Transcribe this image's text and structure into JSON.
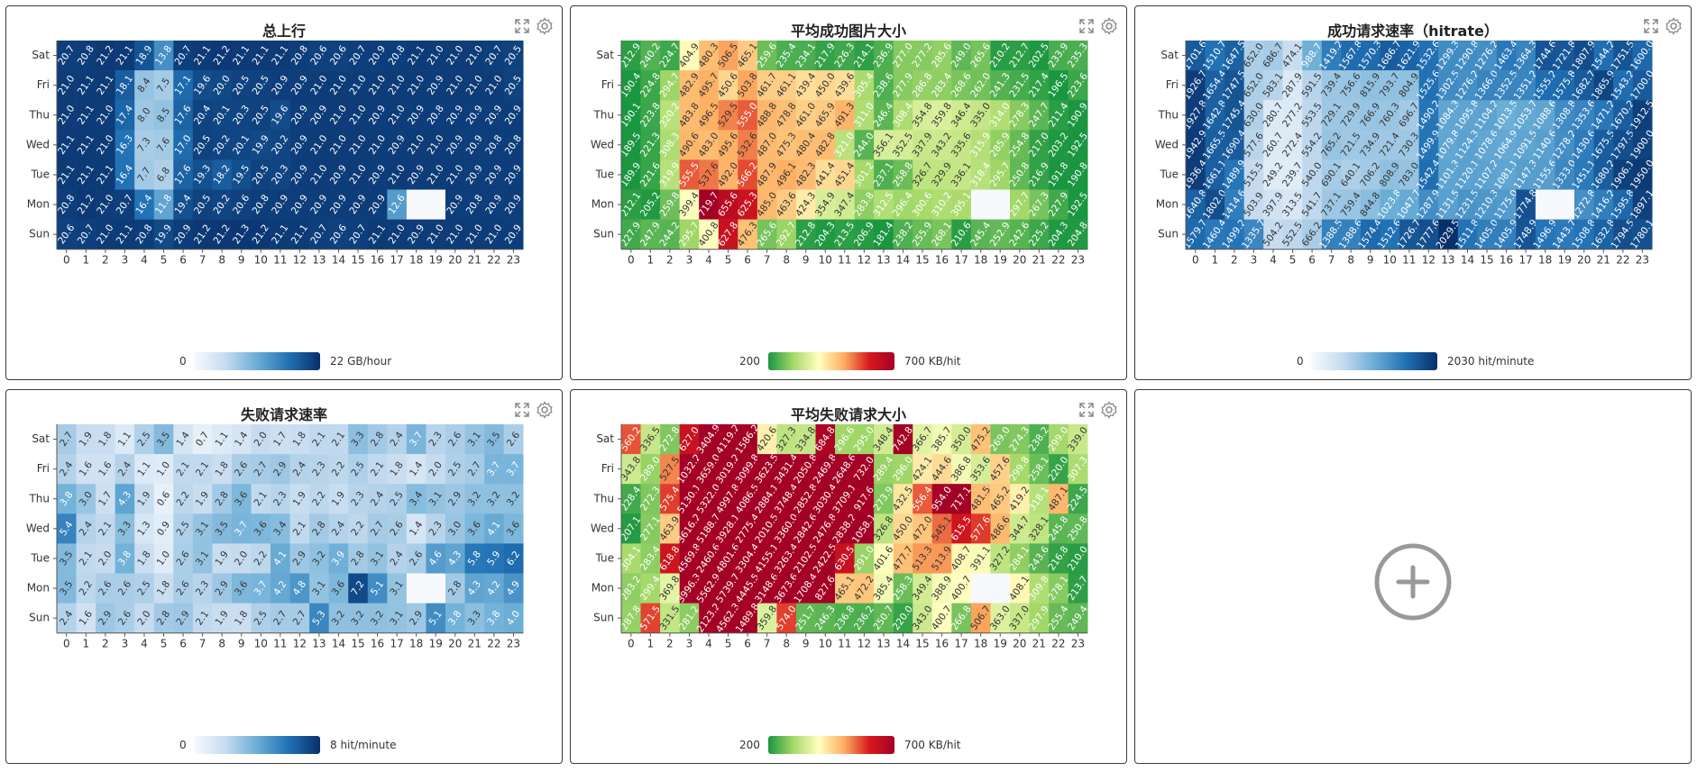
{
  "y_labels": [
    "Sat",
    "Fri",
    "Thu",
    "Wed",
    "Tue",
    "Mon",
    "Sun"
  ],
  "x_labels": [
    "0",
    "1",
    "2",
    "3",
    "4",
    "5",
    "6",
    "7",
    "8",
    "9",
    "10",
    "11",
    "12",
    "13",
    "14",
    "15",
    "16",
    "17",
    "18",
    "19",
    "20",
    "21",
    "22",
    "23"
  ],
  "icons": {
    "expand": "expand-icon",
    "settings": "gear-icon",
    "add": "plus-circle-icon"
  },
  "chart_data": [
    {
      "type": "heatmap",
      "title": "总上行",
      "scheme": "blues",
      "vmin": 0,
      "vmax": 22,
      "legend_min": "0",
      "legend_max": "22 GB/hour",
      "xlabel": "",
      "ylabel": "",
      "rows": [
        [
          20.7,
          20.8,
          21.2,
          21.1,
          18.9,
          13.8,
          20.7,
          21.1,
          21.2,
          21.1,
          21.1,
          21.1,
          20.8,
          20.6,
          20.6,
          20.7,
          20.9,
          20.8,
          21.1,
          21.0,
          21.0,
          21.0,
          20.7,
          20.5
        ],
        [
          21.0,
          21.1,
          21.1,
          18.1,
          8.4,
          7.5,
          17.1,
          19.6,
          20.0,
          20.5,
          20.5,
          20.9,
          20.9,
          21.0,
          21.0,
          21.0,
          21.0,
          21.0,
          21.0,
          20.9,
          21.0,
          21.0,
          21.0,
          20.5
        ],
        [
          21.0,
          21.1,
          21.0,
          17.4,
          8.0,
          8.5,
          17.6,
          20.4,
          20.1,
          20.3,
          20.5,
          19.6,
          20.9,
          20.9,
          21.0,
          21.0,
          20.9,
          21.0,
          20.9,
          20.8,
          20.9,
          20.9,
          20.9,
          20.9
        ],
        [
          21.1,
          21.1,
          21.0,
          16.3,
          7.3,
          7.6,
          17.0,
          20.5,
          20.2,
          20.1,
          19.9,
          20.2,
          20.9,
          21.0,
          21.0,
          21.0,
          21.0,
          20.9,
          21.0,
          21.0,
          20.9,
          20.9,
          20.8,
          20.8
        ],
        [
          21.1,
          21.1,
          21.1,
          16.4,
          7.7,
          6.8,
          17.6,
          19.3,
          18.2,
          19.5,
          20.5,
          20.3,
          20.9,
          21.0,
          20.9,
          21.0,
          20.9,
          21.0,
          20.9,
          21.0,
          21.0,
          20.9,
          20.9,
          20.9
        ],
        [
          20.8,
          21.2,
          21.0,
          20.7,
          16.4,
          11.8,
          19.4,
          20.5,
          20.2,
          20.6,
          20.8,
          20.9,
          20.9,
          20.9,
          20.9,
          20.9,
          20.9,
          12.6,
          0,
          0,
          20.9,
          20.8,
          20.9,
          20.9
        ],
        [
          20.6,
          20.7,
          21.0,
          21.1,
          20.8,
          19.9,
          20.9,
          21.2,
          21.2,
          21.3,
          21.2,
          21.1,
          21.1,
          20.7,
          20.6,
          20.7,
          21.1,
          21.0,
          20.9,
          21.0,
          21.0,
          21.0,
          21.0,
          20.9
        ]
      ]
    },
    {
      "type": "heatmap",
      "title": "平均成功图片大小",
      "scheme": "rdylgn",
      "vmin": 200,
      "vmax": 700,
      "legend_min": "200",
      "legend_max": "700 KB/hit",
      "xlabel": "",
      "ylabel": "",
      "rows": [
        [
          212.9,
          240.2,
          224.7,
          404.9,
          480.3,
          506.5,
          465.1,
          259.6,
          235.4,
          234.1,
          217.9,
          226.3,
          214.1,
          236.9,
          277.0,
          277.2,
          285.6,
          249.0,
          265.6,
          210.2,
          212.7,
          202.5,
          233.9,
          235.3
        ],
        [
          190.4,
          224.8,
          294.7,
          482.9,
          495.7,
          450.6,
          503.8,
          461.7,
          461.1,
          439.4,
          450.0,
          439.6,
          305.4,
          238.6,
          277.9,
          286.8,
          283.4,
          268.6,
          262.0,
          241.3,
          231.5,
          217.4,
          196.5,
          223.6
        ],
        [
          190.1,
          223.8,
          320.2,
          483.8,
          496.5,
          529.5,
          555.0,
          488.8,
          478.8,
          461.0,
          465.9,
          491.3,
          311.0,
          246.4,
          308.4,
          354.8,
          359.8,
          346.4,
          335.0,
          314.0,
          278.3,
          247.7,
          211.4,
          190.9
        ],
        [
          189.5,
          221.3,
          308.3,
          490.6,
          483.0,
          495.6,
          532.6,
          487.0,
          475.3,
          480.4,
          482.8,
          321.0,
          244.0,
          356.1,
          352.5,
          337.9,
          343.2,
          335.6,
          315.9,
          285.9,
          254.8,
          217.0,
          203.2,
          192.5
        ],
        [
          189.9,
          221.6,
          319.9,
          555.5,
          537.6,
          492.0,
          566.2,
          487.9,
          496.1,
          482.3,
          441.4,
          451.4,
          301.2,
          237.1,
          258.8,
          326.7,
          329.9,
          336.1,
          318.4,
          295.7,
          250.8,
          216.9,
          191.8,
          190.8
        ],
        [
          212.1,
          205.2,
          259.8,
          399.4,
          719.7,
          655.6,
          625.3,
          485.0,
          463.6,
          424.3,
          354.9,
          347.4,
          283.8,
          312.5,
          296.4,
          300.6,
          310.2,
          305.1,
          0,
          0,
          297.7,
          267.3,
          227.9,
          192.5
        ],
        [
          227.9,
          247.9,
          244.2,
          295.7,
          400.8,
          627.8,
          476.3,
          265.6,
          292.7,
          212.8,
          204.3,
          213.5,
          206.9,
          181.4,
          238.2,
          255.9,
          268.1,
          210.6,
          245.4,
          252.9,
          242.6,
          225.2,
          204.3,
          204.8
        ]
      ]
    },
    {
      "type": "heatmap",
      "title": "成功请求速率（hitrate）",
      "scheme": "blues",
      "vmin": 0,
      "vmax": 2030,
      "legend_min": "0",
      "legend_max": "2030 hit/minute",
      "xlabel": "",
      "ylabel": "",
      "rows": [
        [
          1701.6,
          1510.7,
          1647.5,
          652.0,
          686.7,
          474.1,
          988.7,
          1419.2,
          1567.8,
          1570.3,
          1686.7,
          1621.9,
          1532.6,
          1299.3,
          1290.8,
          1276.2,
          1463.4,
          1364.3,
          1744.6,
          1721.8,
          1807.9,
          1544.2,
          1751.5,
          1600.0
        ],
        [
          1926.7,
          1654.4,
          1747.5,
          652.0,
          583.1,
          287.9,
          591.5,
          739.4,
          756.6,
          815.9,
          793.7,
          804.9,
          1525.6,
          1302.5,
          1276.2,
          1366.0,
          1352.5,
          1351.2,
          1555.2,
          1575.8,
          1682.7,
          1865.9,
          1543.2,
          1700.0
        ],
        [
          1927.8,
          1642.8,
          1745.4,
          630.0,
          280.7,
          277.2,
          553.5,
          729.1,
          729.9,
          766.9,
          760.3,
          696.7,
          1490.2,
          1084.3,
          1095.8,
          1104.2,
          1013.5,
          1053.7,
          1088.6,
          1308.8,
          1353.6,
          1471.2,
          1670.2,
          1912.5
        ],
        [
          1942.9,
          1665.5,
          1690.4,
          577.6,
          260.7,
          272.4,
          554.2,
          765.2,
          721.5,
          734.9,
          721.4,
          730.3,
          1499.9,
          1079.8,
          1124.3,
          1078.6,
          1064.9,
          1091.5,
          1140.6,
          1278.2,
          1430.6,
          1675.5,
          1797.5,
          1900.0
        ],
        [
          1936.4,
          1661.1,
          1489.9,
          515.5,
          249.2,
          239.7,
          540.0,
          690.1,
          640.1,
          706.2,
          808.9,
          783.0,
          1542.4,
          1101.3,
          1120.1,
          1107.2,
          1081.1,
          1147.3,
          1155.6,
          1333.0,
          1451.1,
          1680.2,
          1906.1,
          1950.0
        ],
        [
          1640.8,
          1802.0,
          1414.6,
          503.9,
          397.9,
          313.5,
          541.7,
          737.1,
          759.4,
          844.8,
          1023.8,
          1047.7,
          1287.9,
          1131.5,
          1231.5,
          1210.3,
          1175.0,
          1774.8,
          0,
          0,
          1272.8,
          1416.2,
          1595.8,
          1897.1
        ],
        [
          1579.7,
          1460.4,
          1499.2,
          1335.7,
          504.2,
          552.5,
          666.2,
          1388.5,
          1388.6,
          1574.4,
          1512.6,
          1726.7,
          1777.6,
          2029.5,
          1511.8,
          1405.0,
          1405.9,
          1748.9,
          1496.9,
          1443.7,
          1508.8,
          1632.8,
          1794.5,
          1780.1
        ]
      ]
    },
    {
      "type": "heatmap",
      "title": "失败请求速率",
      "scheme": "blues",
      "vmin": 0,
      "vmax": 8,
      "legend_min": "0",
      "legend_max": "8 hit/minute",
      "xlabel": "",
      "ylabel": "",
      "rows": [
        [
          2.7,
          1.9,
          1.8,
          1.1,
          2.5,
          3.5,
          1.4,
          0.7,
          1.1,
          1.4,
          2.0,
          1.7,
          1.8,
          2.1,
          2.1,
          3.3,
          2.8,
          2.4,
          3.7,
          2.3,
          2.6,
          3.1,
          3.5,
          2.6
        ],
        [
          2.4,
          1.6,
          1.6,
          2.4,
          1.1,
          1.0,
          2.1,
          2.1,
          1.8,
          2.6,
          2.7,
          2.9,
          2.4,
          2.3,
          2.2,
          2.5,
          2.1,
          1.8,
          1.4,
          2.0,
          2.5,
          2.7,
          3.7,
          3.7
        ],
        [
          3.8,
          3.0,
          1.7,
          4.3,
          1.9,
          0.6,
          2.2,
          1.9,
          2.8,
          3.6,
          2.1,
          2.3,
          1.9,
          2.2,
          1.9,
          2.3,
          2.4,
          2.5,
          3.4,
          3.1,
          2.9,
          3.2,
          3.2,
          3.2
        ],
        [
          5.4,
          2.4,
          2.1,
          3.3,
          1.3,
          0.9,
          2.5,
          3.1,
          3.5,
          3.7,
          3.6,
          3.4,
          2.1,
          2.8,
          2.4,
          2.2,
          2.7,
          2.6,
          1.4,
          2.3,
          3.0,
          3.6,
          4.1,
          3.6
        ],
        [
          3.5,
          2.1,
          2.0,
          3.8,
          1.8,
          1.0,
          2.6,
          3.1,
          1.9,
          2.0,
          2.2,
          4.1,
          2.9,
          3.2,
          3.9,
          2.8,
          3.1,
          2.4,
          2.6,
          4.6,
          4.3,
          5.8,
          5.9,
          6.2
        ],
        [
          3.5,
          2.2,
          2.6,
          2.6,
          2.5,
          1.8,
          2.6,
          2.3,
          2.9,
          3.6,
          3.7,
          4.2,
          4.8,
          3.1,
          3.6,
          7.2,
          5.1,
          3.1,
          0,
          0,
          2.8,
          4.3,
          4.2,
          4.9
        ],
        [
          2.4,
          1.6,
          2.9,
          2.6,
          2.0,
          2.8,
          2.9,
          2.1,
          1.9,
          1.8,
          2.5,
          2.7,
          2.7,
          5.3,
          3.2,
          3.2,
          3.2,
          3.1,
          2.9,
          5.1,
          3.8,
          3.3,
          3.8,
          4.0
        ]
      ]
    },
    {
      "type": "heatmap",
      "title": "平均失败请求大小",
      "scheme": "rdylgn",
      "vmin": 200,
      "vmax": 700,
      "legend_min": "200",
      "legend_max": "700 KB/hit",
      "xlabel": "",
      "ylabel": "",
      "rows": [
        [
          560.2,
          336.5,
          272.8,
          627.0,
          3404.9,
          4119.2,
          1586.2,
          420.6,
          327.3,
          334.8,
          684.8,
          296.6,
          295.0,
          348.4,
          742.8,
          366.7,
          385.7,
          350.0,
          475.2,
          269.0,
          274.3,
          238.2,
          299.0,
          339.0
        ],
        [
          343.8,
          289.0,
          527.5,
          1032.2,
          3659.0,
          3019.2,
          3099.8,
          3623.5,
          3431.4,
          2050.8,
          2469.8,
          2648.6,
          732.0,
          289.4,
          296.0,
          424.1,
          444.6,
          386.8,
          353.6,
          457.6,
          299.8,
          258.1,
          220.0,
          307.3
        ],
        [
          228.4,
          272.3,
          575.4,
          5130.1,
          5322.0,
          4997.8,
          4086.5,
          2884.1,
          3748.4,
          2852.8,
          3030.4,
          3709.1,
          917.6,
          273.9,
          432.5,
          556.4,
          954.0,
          717.1,
          481.5,
          465.2,
          419.2,
          318.1,
          487.1,
          224.5
        ],
        [
          207.1,
          277.1,
          463.9,
          3616.2,
          5188.7,
          3928.1,
          2775.4,
          2010.5,
          3360.0,
          2842.6,
          2476.8,
          2838.2,
          1058.1,
          326.8,
          450.0,
          472.0,
          545.1,
          615.5,
          577.6,
          486.6,
          344.7,
          328.1,
          245.8,
          250.8
        ],
        [
          304.1,
          283.4,
          618.8,
          4569.8,
          2460.6,
          4801.6,
          3304.4,
          4155.1,
          3263.4,
          2102.5,
          2422.5,
          630.5,
          291.0,
          401.6,
          477.7,
          513.3,
          513.9,
          408.7,
          391.1,
          327.2,
          284.1,
          243.6,
          216.8,
          210.0
        ],
        [
          283.2,
          299.4,
          369.8,
          3996.3,
          5562.9,
          5739.7,
          4445.5,
          3148.6,
          3673.6,
          1708.4,
          827.6,
          465.1,
          472.2,
          385.4,
          258.3,
          349.4,
          388.9,
          400.7,
          0,
          0,
          408.1,
          309.8,
          278.1,
          213.7
        ],
        [
          287.8,
          571.5,
          331.5,
          281.2,
          2123.2,
          4562.3,
          1489.8,
          359.8,
          574.0,
          251.7,
          246.3,
          236.8,
          236.2,
          250.7,
          220.0,
          343.0,
          400.7,
          266.8,
          506.7,
          363.0,
          337.0,
          297.9,
          255.4,
          249.4
        ]
      ]
    }
  ]
}
